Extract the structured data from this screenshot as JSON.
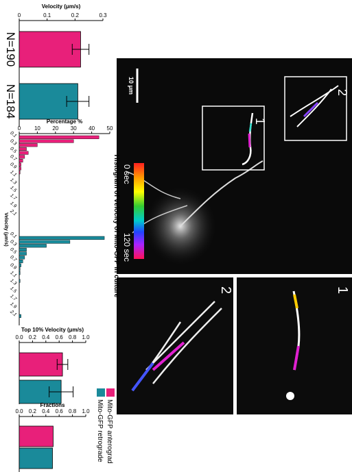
{
  "chart_data": [
    {
      "type": "bar",
      "ylabel": "Velocity (μm/s)",
      "categories": [
        "N=190",
        "N=184"
      ],
      "values": [
        0.22,
        0.21
      ],
      "errors": [
        0.03,
        0.04
      ],
      "colors": [
        "#e8207a",
        "#1a8a9a"
      ],
      "ylim": [
        0,
        0.3
      ],
      "yticks": [
        0,
        0.1,
        0.2,
        0.3
      ]
    },
    {
      "type": "bar",
      "title": "Histogram of velocity of Mito-GFP in culture",
      "xlabel": "Velocity (μm/s)",
      "ylabel": "Percentage %",
      "categories": [
        "0.1",
        null,
        "0.3",
        null,
        "0.5",
        null,
        "0.7",
        null,
        "0.9",
        null,
        "1.1",
        null,
        "1.3",
        null,
        "1.5",
        null,
        "1.7",
        null,
        "1.9",
        null,
        "2.1",
        "0.1",
        null,
        "0.3",
        null,
        "0.5",
        null,
        "0.7",
        null,
        "0.9",
        null,
        "1.1",
        null,
        "1.3",
        null,
        "1.5",
        null,
        "1.7",
        null,
        "1.9",
        null,
        "2.1"
      ],
      "series": [
        {
          "name": "Mito-GFP anterograd",
          "color": "#e8207a",
          "values": [
            44,
            30,
            10,
            4,
            5,
            3,
            2,
            1,
            1,
            0.5,
            0,
            0,
            0,
            0,
            0,
            0,
            0,
            0,
            0,
            0,
            0,
            null,
            null,
            null,
            null,
            null,
            null,
            null,
            null,
            null,
            null,
            null,
            null,
            null,
            null,
            null,
            null,
            null,
            null,
            null,
            null,
            null
          ]
        },
        {
          "name": "Mito-GFP retrograde",
          "color": "#1a8a9a",
          "values": [
            null,
            null,
            null,
            null,
            null,
            null,
            null,
            null,
            null,
            null,
            null,
            null,
            null,
            null,
            null,
            null,
            null,
            null,
            null,
            null,
            null,
            47,
            28,
            15,
            4,
            4,
            3,
            2,
            1,
            0.5,
            0.5,
            0,
            0.5,
            0,
            0,
            0,
            0,
            0,
            0,
            0,
            0,
            1
          ]
        }
      ],
      "ylim": [
        0,
        50
      ],
      "yticks": [
        0,
        10,
        20,
        30,
        40,
        50
      ]
    },
    {
      "type": "bar",
      "ylabel": "Top 10% Velocity (μm/s)",
      "categories": [
        null,
        null
      ],
      "values": [
        0.65,
        0.63
      ],
      "errors": [
        0.08,
        0.18
      ],
      "colors": [
        "#e8207a",
        "#1a8a9a"
      ],
      "ylim": [
        0,
        1
      ],
      "yticks": [
        {
          "value": 0,
          "label": "0.0"
        },
        0.2,
        0.4,
        0.6,
        0.8,
        {
          "value": 1,
          "label": "1.0"
        }
      ]
    },
    {
      "type": "bar",
      "ylabel": "Fractions",
      "categories": [
        null,
        null
      ],
      "values": [
        0.51,
        0.5
      ],
      "colors": [
        "#e8207a",
        "#1a8a9a"
      ],
      "ylim": [
        0,
        1
      ],
      "yticks": [
        {
          "value": 0,
          "label": "0.0"
        },
        0.2,
        0.4,
        0.6,
        0.8,
        {
          "value": 1,
          "label": "1.0"
        }
      ]
    }
  ],
  "images": {
    "main": {
      "regions": [
        "1",
        "2"
      ],
      "scale_bar": "10 μm",
      "colorbar": [
        "0 sec",
        "120 sec"
      ]
    },
    "insets": [
      "1",
      "2"
    ]
  }
}
